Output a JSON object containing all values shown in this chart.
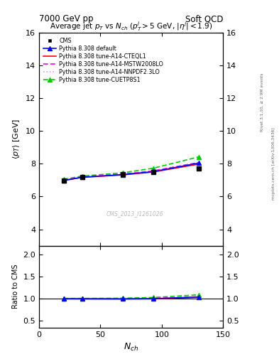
{
  "title_top_left": "7000 GeV pp",
  "title_top_right": "Soft QCD",
  "plot_title": "Average jet $p_T$ vs $N_{ch}$ ($p^j_T$$>$5 GeV, $\\eta^j|$$<$1.9)",
  "xlabel": "$N_{ch}$",
  "ylabel_main": "$\\langle p_T\\rangle$ [GeV]",
  "ylabel_ratio": "Ratio to CMS",
  "right_label_top": "Rivet 3.1.10, ≥ 2.9M events",
  "right_label_bottom": "mcplots.cern.ch [arXiv:1306.3436]",
  "watermark": "CMS_2013_I1261026",
  "xlim": [
    0,
    150
  ],
  "ylim_main": [
    3.0,
    16.0
  ],
  "ylim_ratio": [
    0.35,
    2.2
  ],
  "yticks_main": [
    4,
    6,
    8,
    10,
    12,
    14,
    16
  ],
  "yticks_ratio": [
    0.5,
    1.0,
    1.5,
    2.0
  ],
  "xticks": [
    0,
    50,
    100,
    150
  ],
  "nch_data": [
    20,
    35,
    68,
    93,
    130
  ],
  "cms_y": [
    6.98,
    7.18,
    7.35,
    7.5,
    7.72
  ],
  "cms_yerr": [
    0.04,
    0.04,
    0.04,
    0.05,
    0.06
  ],
  "default_y": [
    6.98,
    7.18,
    7.34,
    7.52,
    8.04
  ],
  "cteql1_y": [
    6.98,
    7.17,
    7.32,
    7.5,
    7.98
  ],
  "mstw_y": [
    7.0,
    7.2,
    7.37,
    7.57,
    8.08
  ],
  "nnpdf_y": [
    6.99,
    7.19,
    7.35,
    7.55,
    8.05
  ],
  "cuetp8s1_y": [
    7.05,
    7.25,
    7.45,
    7.73,
    8.42
  ],
  "cms_color": "#000000",
  "default_color": "#0000ff",
  "cteql1_color": "#ff0000",
  "mstw_color": "#ff00ff",
  "nnpdf_color": "#ff88ff",
  "cuetp8s1_color": "#00cc00",
  "bg_color": "#ffffff",
  "legend_entries": [
    "CMS",
    "Pythia 8.308 default",
    "Pythia 8.308 tune-A14-CTEQL1",
    "Pythia 8.308 tune-A14-MSTW2008LO",
    "Pythia 8.308 tune-A14-NNPDF2.3LO",
    "Pythia 8.308 tune-CUETP8S1"
  ]
}
